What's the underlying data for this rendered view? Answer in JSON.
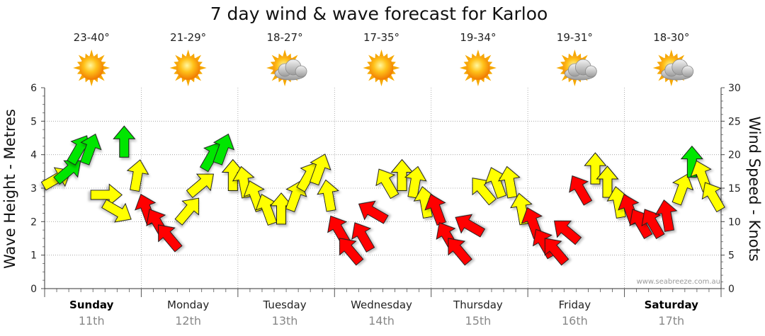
{
  "chart_data": {
    "type": "line",
    "title": "7 day wind & wave forecast for Karloo",
    "ylabel_left": "Wave Height - Metres",
    "ylabel_right": "Wind Speed - Knots",
    "ylim_left": [
      0,
      6
    ],
    "ylim_right": [
      0,
      30
    ],
    "yticks_left": [
      "0",
      "1",
      "2",
      "3",
      "4",
      "5",
      "6"
    ],
    "yticks_right": [
      "0",
      "5",
      "10",
      "15",
      "20",
      "25",
      "30"
    ],
    "watermark": "www.seabreeze.com.au",
    "days": [
      {
        "name": "Sunday",
        "date": "11th",
        "temp": "23-40°",
        "icon": "sun-icon",
        "bold": true
      },
      {
        "name": "Monday",
        "date": "12th",
        "temp": "21-29°",
        "icon": "sun-icon",
        "bold": false
      },
      {
        "name": "Tuesday",
        "date": "13th",
        "temp": "18-27°",
        "icon": "sun-cloud-icon",
        "bold": false
      },
      {
        "name": "Wednesday",
        "date": "14th",
        "temp": "17-35°",
        "icon": "sun-icon",
        "bold": false
      },
      {
        "name": "Thursday",
        "date": "15th",
        "temp": "19-34°",
        "icon": "sun-icon",
        "bold": false
      },
      {
        "name": "Friday",
        "date": "16th",
        "temp": "19-31°",
        "icon": "sun-cloud-icon",
        "bold": false
      },
      {
        "name": "Saturday",
        "date": "17th",
        "temp": "18-30°",
        "icon": "sun-cloud-icon",
        "bold": true
      }
    ],
    "wind_series": {
      "name": "Wind speed (knots)",
      "x_hours": [
        0,
        3,
        6,
        9,
        12,
        15,
        18,
        21,
        24,
        27,
        30,
        33,
        36,
        39,
        42,
        45,
        48,
        51,
        54,
        57,
        60,
        63,
        66,
        69,
        72,
        75,
        78,
        81,
        84,
        87,
        90,
        93,
        96,
        99,
        102,
        105,
        108,
        111,
        114,
        117,
        120,
        123,
        126,
        129,
        132,
        135,
        138,
        141,
        144,
        147,
        150,
        153,
        156,
        159,
        162,
        165
      ],
      "values": [
        16,
        17,
        20,
        20,
        14,
        12,
        21,
        16,
        11,
        9,
        7,
        11,
        15,
        19,
        20,
        16,
        15,
        13,
        11,
        11,
        13,
        16,
        17,
        13,
        8,
        5,
        7,
        11,
        15,
        16,
        15,
        12,
        11,
        7,
        5,
        9,
        14,
        15,
        15,
        11,
        9,
        6,
        5,
        8,
        14,
        17,
        15,
        12,
        11,
        9,
        9,
        10,
        14,
        18,
        16,
        13
      ],
      "arrow_directions_deg": [
        240,
        230,
        210,
        200,
        270,
        300,
        180,
        190,
        160,
        150,
        140,
        220,
        230,
        210,
        200,
        180,
        170,
        160,
        160,
        180,
        200,
        210,
        200,
        170,
        150,
        140,
        150,
        120,
        150,
        180,
        190,
        170,
        160,
        150,
        140,
        120,
        140,
        160,
        170,
        170,
        160,
        150,
        140,
        130,
        150,
        180,
        180,
        170,
        160,
        150,
        150,
        170,
        200,
        180,
        160,
        150
      ],
      "color_legend": {
        "light": "#ffff00",
        "moderate": "#00e600",
        "strong": "#ff0000"
      },
      "colors": [
        "yellow",
        "green",
        "green",
        "green",
        "yellow",
        "yellow",
        "green",
        "yellow",
        "red",
        "red",
        "red",
        "yellow",
        "yellow",
        "green",
        "green",
        "yellow",
        "yellow",
        "yellow",
        "yellow",
        "yellow",
        "yellow",
        "yellow",
        "yellow",
        "yellow",
        "red",
        "red",
        "red",
        "red",
        "yellow",
        "yellow",
        "yellow",
        "yellow",
        "red",
        "red",
        "red",
        "red",
        "yellow",
        "yellow",
        "yellow",
        "yellow",
        "red",
        "red",
        "red",
        "red",
        "red",
        "yellow",
        "yellow",
        "yellow",
        "red",
        "red",
        "red",
        "red",
        "yellow",
        "green",
        "yellow",
        "yellow"
      ]
    }
  }
}
